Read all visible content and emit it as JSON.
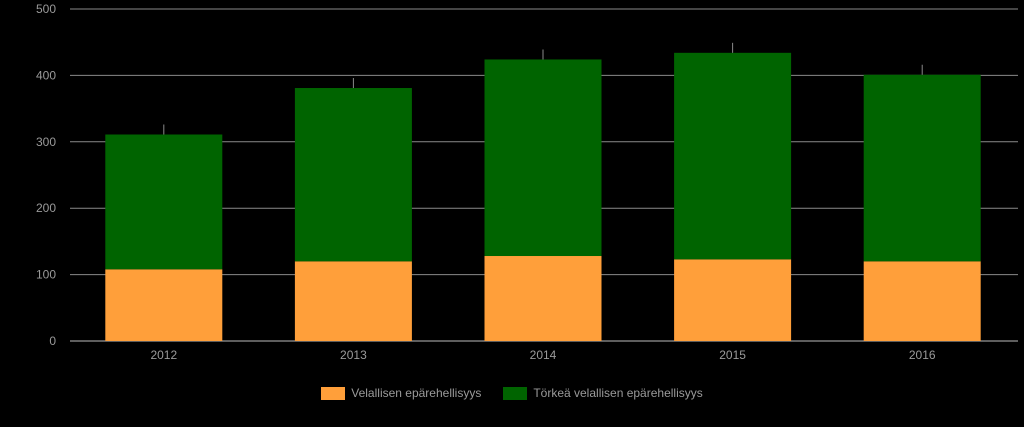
{
  "chart_data": {
    "type": "bar",
    "stacked": true,
    "categories": [
      "2012",
      "2013",
      "2014",
      "2015",
      "2016"
    ],
    "series": [
      {
        "name": "Velallisen epärehellisyys",
        "color": "#ff9f3a",
        "values": [
          108,
          120,
          128,
          123,
          120
        ]
      },
      {
        "name": "Törkeä velallisen epärehellisyys",
        "color": "#006400",
        "values": [
          203,
          261,
          296,
          311,
          281
        ]
      }
    ],
    "ylim": [
      0,
      500
    ],
    "yticks": [
      0,
      100,
      200,
      300,
      400,
      500
    ],
    "grid": true,
    "legend": "bottom"
  }
}
